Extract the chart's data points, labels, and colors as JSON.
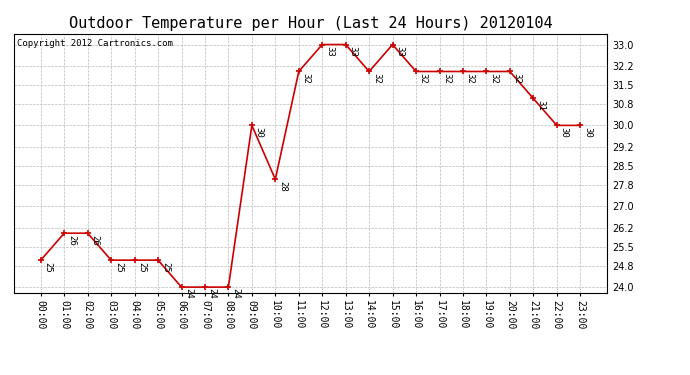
{
  "title": "Outdoor Temperature per Hour (Last 24 Hours) 20120104",
  "copyright_text": "Copyright 2012 Cartronics.com",
  "x_labels": [
    "00:00",
    "01:00",
    "02:00",
    "03:00",
    "04:00",
    "05:00",
    "06:00",
    "07:00",
    "08:00",
    "09:00",
    "10:00",
    "11:00",
    "12:00",
    "13:00",
    "14:00",
    "15:00",
    "16:00",
    "17:00",
    "18:00",
    "19:00",
    "20:00",
    "21:00",
    "22:00",
    "23:00"
  ],
  "y_values": [
    25,
    26,
    26,
    25,
    25,
    25,
    24,
    24,
    24,
    30,
    28,
    32,
    33,
    33,
    32,
    33,
    32,
    32,
    32,
    32,
    32,
    31,
    30,
    30
  ],
  "line_color": "#cc0000",
  "marker_color": "#cc0000",
  "marker": "+",
  "background_color": "#ffffff",
  "grid_color": "#bbbbbb",
  "ylim_min": 23.8,
  "ylim_max": 33.4,
  "yticks": [
    24.0,
    24.8,
    25.5,
    26.2,
    27.0,
    27.8,
    28.5,
    29.2,
    30.0,
    30.8,
    31.5,
    32.2,
    33.0
  ],
  "title_fontsize": 11,
  "label_fontsize": 6.5,
  "tick_fontsize": 7,
  "copyright_fontsize": 6.5,
  "figwidth": 6.9,
  "figheight": 3.75,
  "dpi": 100
}
